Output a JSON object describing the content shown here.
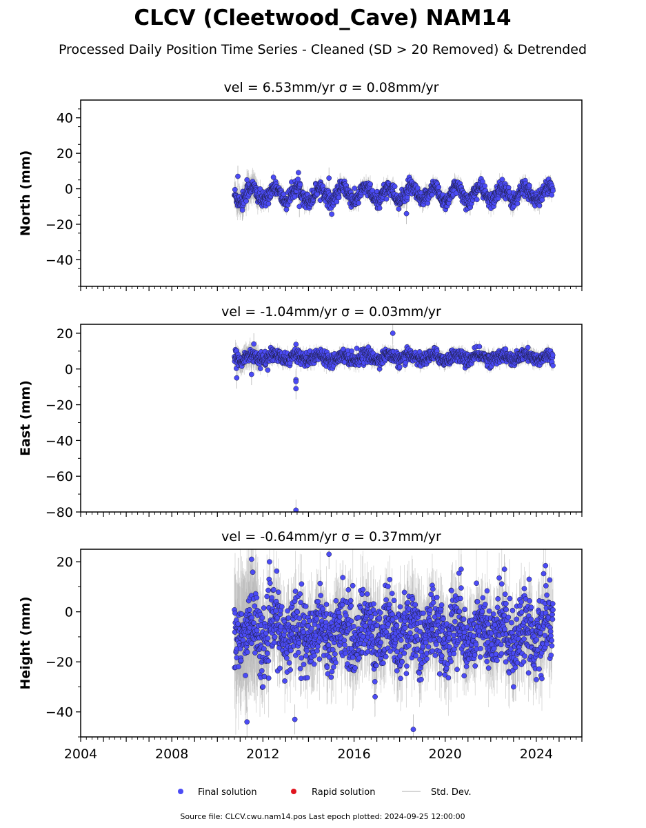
{
  "header": {
    "title": "CLCV (Cleetwood_Cave) NAM14",
    "subtitle": "Processed Daily Position Time Series - Cleaned (SD > 20 Removed) & Detrended"
  },
  "legend": {
    "final": "Final solution",
    "rapid": "Rapid solution",
    "std": "Std. Dev."
  },
  "footer": {
    "text": "Source file: CLCV.cwu.nam14.pos  Last epoch plotted: 2024-09-25 12:00:00"
  },
  "colors": {
    "final": "#4b4bf5",
    "rapid": "#e0141e",
    "std": "#b4b4b4"
  },
  "chart_data": [
    {
      "type": "scatter",
      "panel": "north",
      "title": "vel = 6.53mm/yr   σ = 0.08mm/yr",
      "ylabel": "North (mm)",
      "xlim": [
        2004.0,
        2026.0
      ],
      "ylim": [
        -55,
        50
      ],
      "yticks": [
        -40,
        -20,
        0,
        20,
        40
      ],
      "data_start": 2010.75,
      "data_end": 2024.73,
      "envelope": {
        "mean": -3,
        "seasonal_amplitude": 4,
        "noise": 2.2
      },
      "outliers": [
        {
          "x": 2010.9,
          "y": 7
        },
        {
          "x": 2011.1,
          "y": -12
        },
        {
          "x": 2011.3,
          "y": 5
        },
        {
          "x": 2013.6,
          "y": -10
        },
        {
          "x": 2018.3,
          "y": -14
        },
        {
          "x": 2014.9,
          "y": 6
        }
      ]
    },
    {
      "type": "scatter",
      "panel": "east",
      "title": "vel = -1.04mm/yr   σ = 0.03mm/yr",
      "ylabel": "East (mm)",
      "xlim": [
        2004.0,
        2026.0
      ],
      "ylim": [
        -80,
        25
      ],
      "yticks": [
        -80,
        -60,
        -40,
        -20,
        0,
        20
      ],
      "data_start": 2010.75,
      "data_end": 2024.73,
      "envelope": {
        "mean": 6.5,
        "seasonal_amplitude": 1.5,
        "noise": 1.8
      },
      "outliers": [
        {
          "x": 2013.45,
          "y": -6
        },
        {
          "x": 2013.45,
          "y": -7
        },
        {
          "x": 2013.45,
          "y": -11
        },
        {
          "x": 2013.45,
          "y": -79
        },
        {
          "x": 2017.7,
          "y": 20
        },
        {
          "x": 2010.85,
          "y": -5
        },
        {
          "x": 2011.6,
          "y": 14
        },
        {
          "x": 2011.5,
          "y": -3
        }
      ]
    },
    {
      "type": "scatter",
      "panel": "height",
      "title": "vel = -0.64mm/yr   σ = 0.37mm/yr",
      "ylabel": "Height (mm)",
      "xlim": [
        2004.0,
        2026.0
      ],
      "ylim": [
        -50,
        25
      ],
      "yticks": [
        -40,
        -20,
        0,
        20
      ],
      "xticks": [
        2004,
        2008,
        2012,
        2016,
        2020,
        2024
      ],
      "data_start": 2010.75,
      "data_end": 2024.73,
      "envelope": {
        "mean": -8,
        "seasonal_amplitude": 5,
        "noise": 7
      },
      "outliers": [
        {
          "x": 2011.5,
          "y": 21
        },
        {
          "x": 2011.3,
          "y": -44
        },
        {
          "x": 2013.4,
          "y": -43
        },
        {
          "x": 2014.9,
          "y": 23
        },
        {
          "x": 2018.6,
          "y": -47
        },
        {
          "x": 2020.7,
          "y": 17
        },
        {
          "x": 2022.6,
          "y": 17
        },
        {
          "x": 2023.0,
          "y": -30
        },
        {
          "x": 2012.0,
          "y": -30
        }
      ]
    }
  ]
}
